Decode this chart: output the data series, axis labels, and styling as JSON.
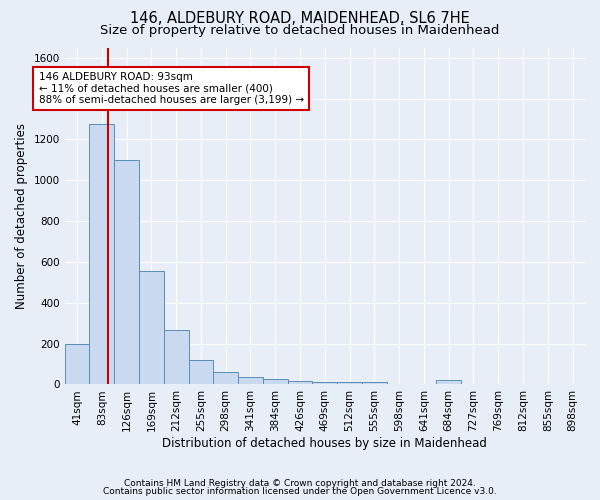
{
  "title1": "146, ALDEBURY ROAD, MAIDENHEAD, SL6 7HE",
  "title2": "Size of property relative to detached houses in Maidenhead",
  "xlabel": "Distribution of detached houses by size in Maidenhead",
  "ylabel": "Number of detached properties",
  "bin_labels": [
    "41sqm",
    "83sqm",
    "126sqm",
    "169sqm",
    "212sqm",
    "255sqm",
    "298sqm",
    "341sqm",
    "384sqm",
    "426sqm",
    "469sqm",
    "512sqm",
    "555sqm",
    "598sqm",
    "641sqm",
    "684sqm",
    "727sqm",
    "769sqm",
    "812sqm",
    "855sqm",
    "898sqm"
  ],
  "bar_heights": [
    200,
    1275,
    1100,
    555,
    265,
    120,
    60,
    35,
    25,
    15,
    10,
    10,
    10,
    0,
    0,
    20,
    0,
    0,
    0,
    0,
    0
  ],
  "bar_color": "#c9d9f0",
  "bar_edge_color": "#5b8db8",
  "ylim": [
    0,
    1650
  ],
  "yticks": [
    0,
    200,
    400,
    600,
    800,
    1000,
    1200,
    1400,
    1600
  ],
  "vline_x": 1.23,
  "vline_color": "#cc0000",
  "annotation_text": "146 ALDEBURY ROAD: 93sqm\n← 11% of detached houses are smaller (400)\n88% of semi-detached houses are larger (3,199) →",
  "annotation_box_edgecolor": "#cc0000",
  "footer1": "Contains HM Land Registry data © Crown copyright and database right 2024.",
  "footer2": "Contains public sector information licensed under the Open Government Licence v3.0.",
  "bg_color": "#e8eef8",
  "grid_color": "#ffffff",
  "title1_fontsize": 10.5,
  "title2_fontsize": 9.5,
  "xlabel_fontsize": 8.5,
  "ylabel_fontsize": 8.5,
  "tick_fontsize": 7.5,
  "footer_fontsize": 6.5,
  "ann_fontsize": 7.5
}
